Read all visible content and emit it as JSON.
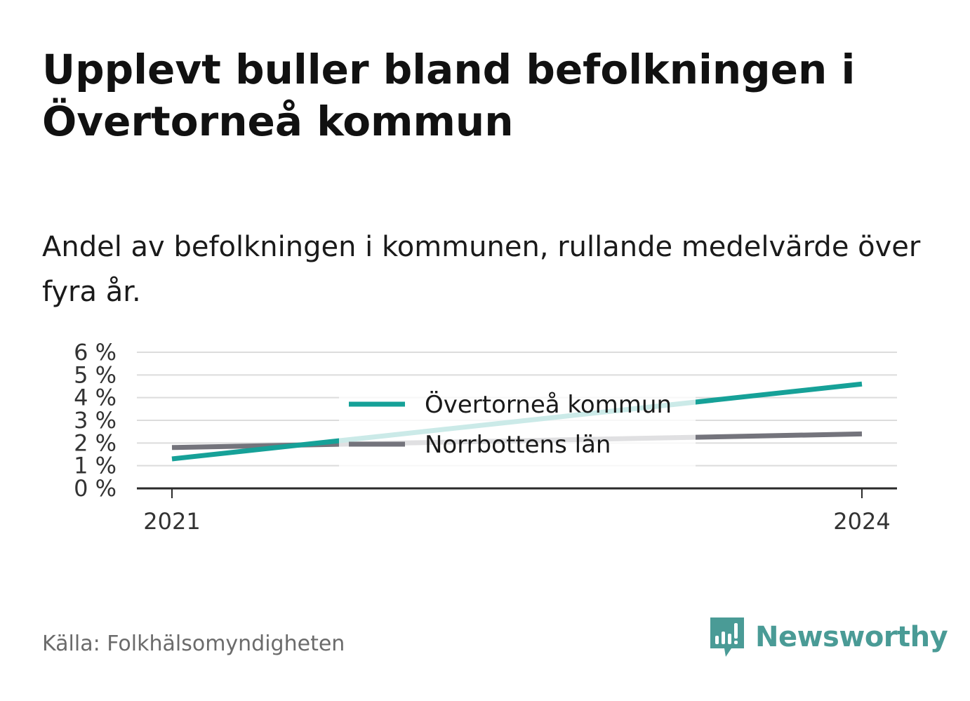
{
  "title": "Upplevt buller bland befolkningen i Övertorneå kommun",
  "subtitle": "Andel av befolkningen i kommunen, rullande medelvärde över fyra år.",
  "source": "Källa: Folkhälsomyndigheten",
  "brand": {
    "name": "Newsworthy",
    "icon": "newsworthy-logo-icon",
    "color": "#4a9b96"
  },
  "chart_data": {
    "type": "line",
    "x": [
      "2021",
      "2024"
    ],
    "series": [
      {
        "name": "Övertorneå kommun",
        "values": [
          1.3,
          4.6
        ],
        "color": "#16a198"
      },
      {
        "name": "Norrbottens län",
        "values": [
          1.8,
          2.4
        ],
        "color": "#74747c"
      }
    ],
    "y_ticks": [
      0,
      1,
      2,
      3,
      4,
      5,
      6
    ],
    "y_tick_labels": [
      "0 %",
      "1 %",
      "2 %",
      "3 %",
      "4 %",
      "5 %",
      "6 %"
    ],
    "x_tick_labels": [
      "2021",
      "2024"
    ],
    "ylim": [
      0,
      6
    ],
    "grid": true,
    "legend_position": "center"
  }
}
